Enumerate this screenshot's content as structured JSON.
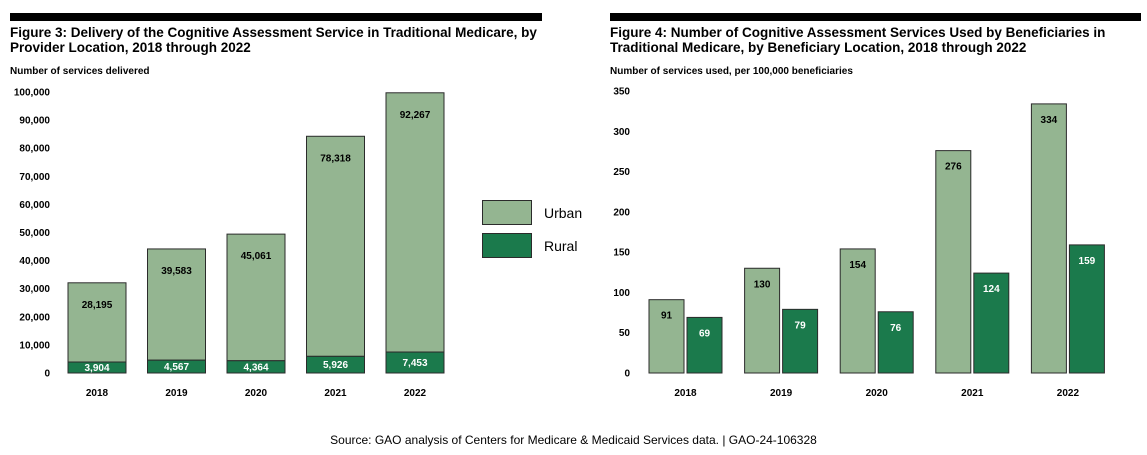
{
  "colors": {
    "urban": "#94b591",
    "rural": "#1b7a4c",
    "edge": "#2b2b2b"
  },
  "figure3": {
    "title": "Figure 3: Delivery of the Cognitive Assessment Service in Traditional Medicare, by Provider Location, 2018 through 2022",
    "ylabel": "Number of services delivered"
  },
  "figure4": {
    "title": "Figure 4: Number of Cognitive Assessment Services Used by Beneficiaries in Traditional Medicare, by Beneficiary Location, 2018 through 2022",
    "ylabel": "Number of services used, per 100,000 beneficiaries"
  },
  "legend": {
    "urban": "Urban",
    "rural": "Rural"
  },
  "source": "Source: GAO analysis of Centers for Medicare & Medicaid Services data.  |  GAO-24-106328",
  "chart_data": [
    {
      "type": "bar",
      "stacked": true,
      "title": "Figure 3: Delivery of the Cognitive Assessment Service in Traditional Medicare, by Provider Location, 2018 through 2022",
      "ylabel": "Number of services delivered",
      "categories": [
        "2018",
        "2019",
        "2020",
        "2021",
        "2022"
      ],
      "ylim": [
        0,
        100000
      ],
      "yticks": [
        0,
        10000,
        20000,
        30000,
        40000,
        50000,
        60000,
        70000,
        80000,
        90000,
        100000
      ],
      "ytick_labels": [
        "0",
        "10,000",
        "20,000",
        "30,000",
        "40,000",
        "50,000",
        "60,000",
        "70,000",
        "80,000",
        "90,000",
        "100,000"
      ],
      "series": [
        {
          "name": "Rural",
          "values": [
            3904,
            4567,
            4364,
            5926,
            7453
          ],
          "labels": [
            "3,904",
            "4,567",
            "4,364",
            "5,926",
            "7,453"
          ]
        },
        {
          "name": "Urban",
          "values": [
            28195,
            39583,
            45061,
            78318,
            92267
          ],
          "labels": [
            "28,195",
            "39,583",
            "45,061",
            "78,318",
            "92,267"
          ]
        }
      ],
      "grid": false,
      "legend": "right"
    },
    {
      "type": "bar",
      "stacked": false,
      "title": "Figure 4: Number of Cognitive Assessment Services Used by Beneficiaries in Traditional Medicare, by Beneficiary Location, 2018 through 2022",
      "ylabel": "Number of services used, per 100,000 beneficiaries",
      "categories": [
        "2018",
        "2019",
        "2020",
        "2021",
        "2022"
      ],
      "ylim": [
        0,
        350
      ],
      "yticks": [
        0,
        50,
        100,
        150,
        200,
        250,
        300,
        350
      ],
      "ytick_labels": [
        "0",
        "50",
        "100",
        "150",
        "200",
        "250",
        "300",
        "350"
      ],
      "series": [
        {
          "name": "Urban",
          "values": [
            91,
            130,
            154,
            276,
            334
          ],
          "labels": [
            "91",
            "130",
            "154",
            "276",
            "334"
          ]
        },
        {
          "name": "Rural",
          "values": [
            69,
            79,
            76,
            124,
            159
          ],
          "labels": [
            "69",
            "79",
            "76",
            "124",
            "159"
          ]
        }
      ],
      "grid": false
    }
  ]
}
